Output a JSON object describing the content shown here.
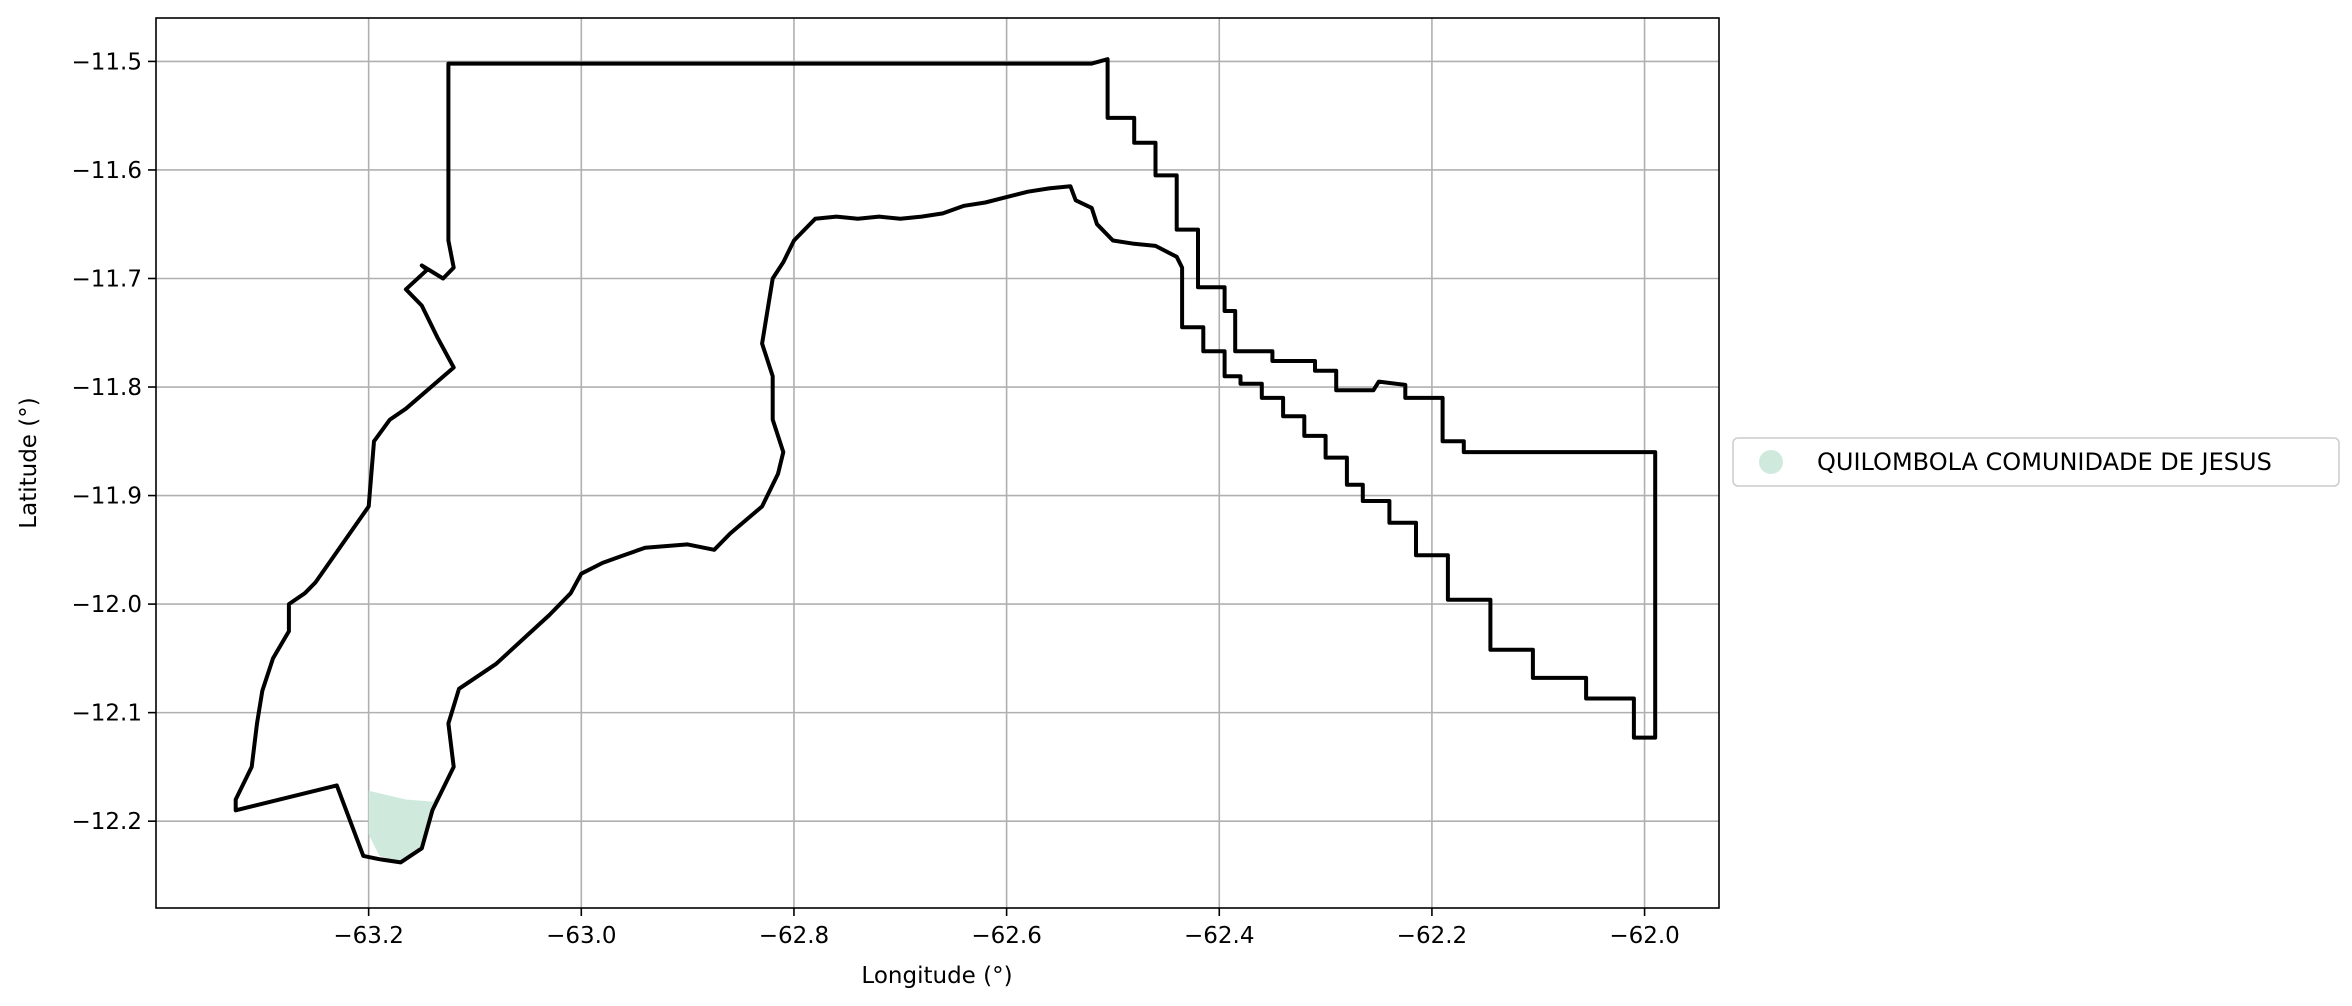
{
  "chart_data": {
    "type": "map",
    "xlabel": "Longitude (°)",
    "ylabel": "Latitude (°)",
    "xlim": [
      -63.4,
      -61.93
    ],
    "ylim": [
      -12.28,
      -11.46
    ],
    "grid": true,
    "x_ticks": [
      -63.2,
      -63.0,
      -62.8,
      -62.6,
      -62.4,
      -62.2,
      -62.0
    ],
    "x_tick_labels": [
      "−63.2",
      "−63.0",
      "−62.8",
      "−62.6",
      "−62.4",
      "−62.2",
      "−62.0"
    ],
    "y_ticks": [
      -11.5,
      -11.6,
      -11.7,
      -11.8,
      -11.9,
      -12.0,
      -12.1,
      -12.2
    ],
    "y_tick_labels": [
      "−11.5",
      "−11.6",
      "−11.7",
      "−11.8",
      "−11.9",
      "−12.0",
      "−12.1",
      "−12.2"
    ],
    "legend": {
      "placement": "center-right-outside",
      "entries": [
        {
          "label": "QUILOMBOLA COMUNIDADE DE JESUS",
          "color": "#cfeadd"
        }
      ]
    },
    "boundaries": [
      {
        "name": "outer-boundary",
        "color": "#000000",
        "points": [
          [
            -63.125,
            -11.502
          ],
          [
            -62.52,
            -11.502
          ],
          [
            -62.505,
            -11.498
          ],
          [
            -62.505,
            -11.552
          ],
          [
            -62.48,
            -11.552
          ],
          [
            -62.48,
            -11.575
          ],
          [
            -62.46,
            -11.575
          ],
          [
            -62.46,
            -11.605
          ],
          [
            -62.44,
            -11.605
          ],
          [
            -62.44,
            -11.655
          ],
          [
            -62.42,
            -11.655
          ],
          [
            -62.42,
            -11.708
          ],
          [
            -62.395,
            -11.708
          ],
          [
            -62.395,
            -11.73
          ],
          [
            -62.385,
            -11.73
          ],
          [
            -62.385,
            -11.767
          ],
          [
            -62.35,
            -11.767
          ],
          [
            -62.35,
            -11.776
          ],
          [
            -62.31,
            -11.776
          ],
          [
            -62.31,
            -11.785
          ],
          [
            -62.29,
            -11.785
          ],
          [
            -62.29,
            -11.803
          ],
          [
            -62.255,
            -11.803
          ],
          [
            -62.25,
            -11.795
          ],
          [
            -62.225,
            -11.798
          ],
          [
            -62.225,
            -11.81
          ],
          [
            -62.19,
            -11.81
          ],
          [
            -62.19,
            -11.85
          ],
          [
            -62.17,
            -11.85
          ],
          [
            -62.17,
            -11.86
          ],
          [
            -61.99,
            -11.86
          ],
          [
            -61.99,
            -12.123
          ],
          [
            -62.01,
            -12.123
          ],
          [
            -62.01,
            -12.087
          ],
          [
            -62.055,
            -12.087
          ],
          [
            -62.055,
            -12.068
          ],
          [
            -62.105,
            -12.068
          ],
          [
            -62.105,
            -12.042
          ],
          [
            -62.145,
            -12.042
          ],
          [
            -62.145,
            -11.996
          ],
          [
            -62.185,
            -11.996
          ],
          [
            -62.185,
            -11.955
          ],
          [
            -62.215,
            -11.955
          ],
          [
            -62.215,
            -11.925
          ],
          [
            -62.24,
            -11.925
          ],
          [
            -62.24,
            -11.905
          ],
          [
            -62.265,
            -11.905
          ],
          [
            -62.265,
            -11.89
          ],
          [
            -62.28,
            -11.89
          ],
          [
            -62.28,
            -11.865
          ],
          [
            -62.3,
            -11.865
          ],
          [
            -62.3,
            -11.845
          ],
          [
            -62.32,
            -11.845
          ],
          [
            -62.32,
            -11.827
          ],
          [
            -62.34,
            -11.827
          ],
          [
            -62.34,
            -11.81
          ],
          [
            -62.36,
            -11.81
          ],
          [
            -62.36,
            -11.797
          ],
          [
            -62.38,
            -11.797
          ],
          [
            -62.38,
            -11.79
          ],
          [
            -62.395,
            -11.79
          ],
          [
            -62.395,
            -11.767
          ],
          [
            -62.415,
            -11.767
          ],
          [
            -62.415,
            -11.745
          ],
          [
            -62.435,
            -11.745
          ],
          [
            -62.435,
            -11.69
          ],
          [
            -62.44,
            -11.68
          ],
          [
            -62.46,
            -11.67
          ],
          [
            -62.48,
            -11.668
          ],
          [
            -62.5,
            -11.665
          ],
          [
            -62.515,
            -11.65
          ],
          [
            -62.52,
            -11.635
          ],
          [
            -62.535,
            -11.628
          ],
          [
            -62.54,
            -11.615
          ],
          [
            -62.56,
            -11.617
          ],
          [
            -62.58,
            -11.62
          ],
          [
            -62.6,
            -11.625
          ],
          [
            -62.62,
            -11.63
          ],
          [
            -62.64,
            -11.633
          ],
          [
            -62.66,
            -11.64
          ],
          [
            -62.68,
            -11.643
          ],
          [
            -62.7,
            -11.645
          ],
          [
            -62.72,
            -11.643
          ],
          [
            -62.74,
            -11.645
          ],
          [
            -62.76,
            -11.643
          ],
          [
            -62.78,
            -11.645
          ],
          [
            -62.79,
            -11.655
          ],
          [
            -62.8,
            -11.665
          ],
          [
            -62.81,
            -11.685
          ],
          [
            -62.82,
            -11.7
          ],
          [
            -62.825,
            -11.73
          ],
          [
            -62.83,
            -11.76
          ],
          [
            -62.82,
            -11.79
          ],
          [
            -62.82,
            -11.83
          ],
          [
            -62.81,
            -11.86
          ],
          [
            -62.815,
            -11.88
          ],
          [
            -62.83,
            -11.91
          ],
          [
            -62.86,
            -11.935
          ],
          [
            -62.875,
            -11.95
          ],
          [
            -62.9,
            -11.945
          ],
          [
            -62.94,
            -11.948
          ],
          [
            -62.96,
            -11.955
          ],
          [
            -62.98,
            -11.962
          ],
          [
            -63.0,
            -11.972
          ],
          [
            -63.01,
            -11.99
          ],
          [
            -63.03,
            -12.01
          ],
          [
            -63.05,
            -12.028
          ],
          [
            -63.08,
            -12.055
          ],
          [
            -63.115,
            -12.078
          ],
          [
            -63.125,
            -12.11
          ],
          [
            -63.12,
            -12.15
          ],
          [
            -63.14,
            -12.19
          ],
          [
            -63.15,
            -12.225
          ],
          [
            -63.17,
            -12.238
          ],
          [
            -63.19,
            -12.235
          ],
          [
            -63.205,
            -12.232
          ],
          [
            -63.23,
            -12.167
          ],
          [
            -63.325,
            -12.19
          ],
          [
            -63.325,
            -12.18
          ],
          [
            -63.31,
            -12.15
          ],
          [
            -63.305,
            -12.11
          ],
          [
            -63.3,
            -12.08
          ],
          [
            -63.29,
            -12.05
          ],
          [
            -63.275,
            -12.025
          ],
          [
            -63.275,
            -12.0
          ],
          [
            -63.26,
            -11.99
          ],
          [
            -63.25,
            -11.98
          ],
          [
            -63.2,
            -11.91
          ],
          [
            -63.195,
            -11.85
          ],
          [
            -63.18,
            -11.83
          ],
          [
            -63.165,
            -11.82
          ],
          [
            -63.12,
            -11.782
          ],
          [
            -63.135,
            -11.755
          ],
          [
            -63.15,
            -11.725
          ],
          [
            -63.165,
            -11.71
          ],
          [
            -63.145,
            -11.692
          ],
          [
            -63.15,
            -11.688
          ],
          [
            -63.13,
            -11.7
          ],
          [
            -63.12,
            -11.69
          ],
          [
            -63.125,
            -11.665
          ],
          [
            -63.125,
            -11.55
          ],
          [
            -63.125,
            -11.502
          ]
        ]
      }
    ],
    "regions": [
      {
        "name": "QUILOMBOLA COMUNIDADE DE JESUS",
        "color": "#cfeadd",
        "points": [
          [
            -63.2,
            -12.172
          ],
          [
            -63.165,
            -12.18
          ],
          [
            -63.14,
            -12.182
          ],
          [
            -63.13,
            -12.17
          ],
          [
            -63.12,
            -12.15
          ],
          [
            -63.14,
            -12.19
          ],
          [
            -63.15,
            -12.225
          ],
          [
            -63.17,
            -12.238
          ],
          [
            -63.19,
            -12.232
          ],
          [
            -63.2,
            -12.212
          ]
        ]
      }
    ]
  }
}
